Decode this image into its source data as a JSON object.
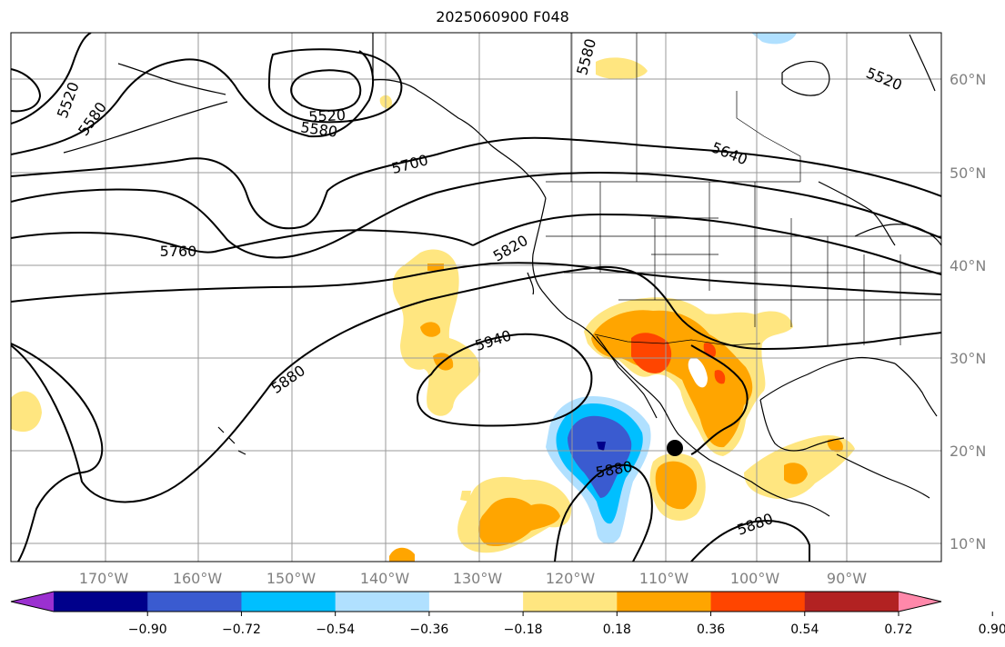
{
  "title": "2025060900 F048",
  "lat_labels": [
    "60°N",
    "50°N",
    "40°N",
    "30°N",
    "20°N",
    "10°N"
  ],
  "lon_labels": [
    "170°W",
    "160°W",
    "150°W",
    "140°W",
    "130°W",
    "120°W",
    "110°W",
    "100°W",
    "90°W"
  ],
  "colorbar": {
    "ticks": [
      "−0.90",
      "−0.72",
      "−0.54",
      "−0.36",
      "−0.18",
      "0.18",
      "0.36",
      "0.54",
      "0.72",
      "0.90"
    ],
    "colors": [
      "#9b30d0",
      "#00008b",
      "#3a5bd0",
      "#00bfff",
      "#b0e0ff",
      "#ffffff",
      "#ffe680",
      "#ffa500",
      "#ff4500",
      "#b22222",
      "#ff88aa"
    ]
  },
  "contour_labels": {
    "c5520_west": "5520",
    "c5580_west": "5580",
    "c5520_low": "5520",
    "c5580_low": "5580",
    "c5580_north": "5580",
    "c5520_ne": "5520",
    "c5640": "5640",
    "c5700": "5700",
    "c5760": "5760",
    "c5820": "5820",
    "c5940": "5940",
    "c5880_west": "5880",
    "c5880_mid": "5880",
    "c5880_south": "5880"
  }
}
